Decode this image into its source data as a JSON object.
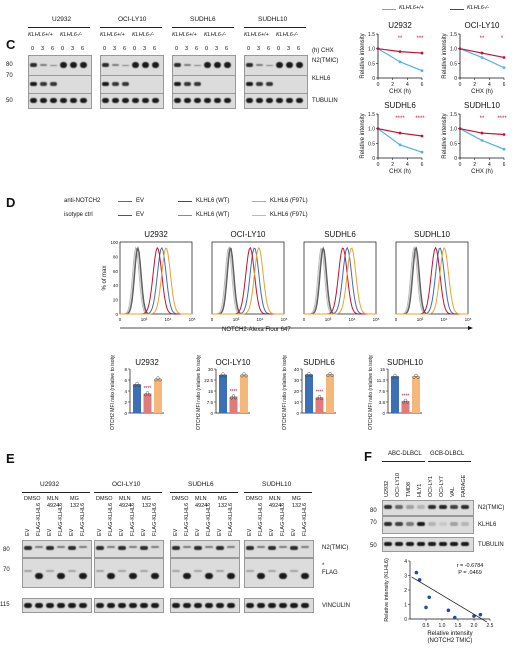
{
  "panel_c": {
    "letter": "C",
    "cells": [
      "U2932",
      "OCI-LY10",
      "SUDHL6",
      "SUDHL10"
    ],
    "genotype_wt": "KLHL6+/+",
    "genotype_ko": "KLHL6-/-",
    "times": [
      "0",
      "3",
      "6",
      "0",
      "3",
      "6"
    ],
    "chx_label": "(h) CHX",
    "markers": [
      "80",
      "70",
      "50"
    ],
    "bands": [
      "N2(TMIC)",
      "KLHL6",
      "TUBULIN"
    ],
    "charts": {
      "legend_wt": "KLHL6+/+",
      "legend_ko": "KLHL6-/-",
      "ylabel": "Relative intensity",
      "xlabel": "CHX (h)",
      "titles": [
        "U2932",
        "OCI-LY10",
        "SUDHL6",
        "SUDHL10"
      ],
      "sig": [
        "**",
        "***",
        "**",
        "*",
        "****",
        "****",
        "**",
        "****"
      ]
    }
  },
  "panel_d": {
    "letter": "D",
    "row_labels": [
      "anti-NOTCH2",
      "isotype ctrl"
    ],
    "legend_items": [
      "EV",
      "KLHL6 (WT)",
      "KLHL6 (F97L)",
      "EV",
      "KLHL6 (WT)",
      "KLHL6 (F97L)"
    ],
    "flow_titles": [
      "U2932",
      "OCI-LY10",
      "SUDHL6",
      "SUDHL10"
    ],
    "flow_ylabel": "% of max",
    "flow_xlabel": "NOTCH2-Alexa Flour 647",
    "flow_ticks": [
      "0",
      "10³",
      "10⁴",
      "10⁵"
    ],
    "flow_yticks": [
      "100",
      "80",
      "60",
      "40",
      "20",
      "0"
    ],
    "bar_titles": [
      "U2932",
      "OCI-LY10",
      "SUDHL6",
      "SUDHL10"
    ],
    "bar_ylabel": "NOTCH2 MFI ratio (relative to isotype)",
    "bar_sig": [
      "****",
      "****",
      "****",
      "****"
    ]
  },
  "panel_e": {
    "letter": "E",
    "cells": [
      "U2932",
      "OCI-LY10",
      "SUDHL6",
      "SUDHL10"
    ],
    "treat": [
      "DMSO",
      "MLN 4924",
      "MG 132"
    ],
    "lanes": [
      "EV",
      "FLAG-KLHL6",
      "EV",
      "FLAG-KLHL6",
      "EV",
      "FLAG-KLHL6"
    ],
    "markers": [
      "80",
      "70",
      "115"
    ],
    "bands": [
      "N2(TMIC)",
      "FLAG",
      "VINCULIN"
    ],
    "asterisk": "*"
  },
  "panel_f": {
    "letter": "F",
    "groups": [
      "ABC-DLBCL",
      "GCB-DLBCL"
    ],
    "lanes": [
      "U2932",
      "OCI-LY10",
      "TMD8",
      "HLY1",
      "OCI-LY1",
      "OCI-LY7",
      "VAL",
      "FARAGE"
    ],
    "markers": [
      "80",
      "70",
      "50"
    ],
    "bands": [
      "N2(TMIC)",
      "KLHL6",
      "TUBULIN"
    ],
    "scatter": {
      "r_text": "r = -0.6784",
      "p_text": "P = .0469",
      "xlabel": "Relative intensity (NOTCH2 TMIC)",
      "ylabel": "Relative intensity (KLHL6)",
      "xticks": [
        "0.5",
        "1.0",
        "1.5",
        "2.0",
        "2.5"
      ],
      "yticks": [
        "0",
        "1",
        "2",
        "3",
        "4"
      ]
    }
  },
  "chart_data": [
    {
      "type": "line",
      "title": "U2932",
      "x": [
        0,
        3,
        6
      ],
      "series": [
        {
          "name": "KLHL6+/+",
          "color": "#4fb3e8",
          "values": [
            1.0,
            0.55,
            0.25
          ]
        },
        {
          "name": "KLHL6-/-",
          "color": "#c8102e",
          "values": [
            1.0,
            0.9,
            0.85
          ]
        }
      ],
      "xlabel": "CHX (h)",
      "ylabel": "Relative intensity",
      "ylim": [
        0,
        1.5
      ]
    },
    {
      "type": "line",
      "title": "OCI-LY10",
      "x": [
        0,
        3,
        6
      ],
      "series": [
        {
          "name": "KLHL6+/+",
          "color": "#4fb3e8",
          "values": [
            1.0,
            0.7,
            0.35
          ]
        },
        {
          "name": "KLHL6-/-",
          "color": "#c8102e",
          "values": [
            1.0,
            0.85,
            0.7
          ]
        }
      ],
      "xlabel": "CHX (h)",
      "ylabel": "Relative intensity",
      "ylim": [
        0,
        1.5
      ]
    },
    {
      "type": "line",
      "title": "SUDHL6",
      "x": [
        0,
        3,
        6
      ],
      "series": [
        {
          "name": "KLHL6+/+",
          "color": "#4fb3e8",
          "values": [
            1.0,
            0.45,
            0.2
          ]
        },
        {
          "name": "KLHL6-/-",
          "color": "#c8102e",
          "values": [
            1.0,
            0.85,
            0.75
          ]
        }
      ],
      "xlabel": "CHX (h)",
      "ylabel": "Relative intensity",
      "ylim": [
        0,
        1.5
      ]
    },
    {
      "type": "line",
      "title": "SUDHL10",
      "x": [
        0,
        3,
        6
      ],
      "series": [
        {
          "name": "KLHL6+/+",
          "color": "#4fb3e8",
          "values": [
            1.0,
            0.6,
            0.3
          ]
        },
        {
          "name": "KLHL6-/-",
          "color": "#c8102e",
          "values": [
            1.0,
            0.85,
            0.8
          ]
        }
      ],
      "xlabel": "CHX (h)",
      "ylabel": "Relative intensity",
      "ylim": [
        0,
        1.5
      ]
    },
    {
      "type": "bar",
      "title": "U2932",
      "categories": [
        "EV",
        "KLHL6 (WT)",
        "KLHL6 (F97L)"
      ],
      "values": [
        5.2,
        3.5,
        6.2
      ],
      "colors": [
        "#3b6fb6",
        "#e07b7b",
        "#f5b87a"
      ],
      "ylim": [
        0,
        8
      ]
    },
    {
      "type": "bar",
      "title": "OCI-LY10",
      "categories": [
        "EV",
        "KLHL6 (WT)",
        "KLHL6 (F97L)"
      ],
      "values": [
        26,
        11,
        26
      ],
      "colors": [
        "#3b6fb6",
        "#e07b7b",
        "#f5b87a"
      ],
      "ylim": [
        0,
        30
      ]
    },
    {
      "type": "bar",
      "title": "SUDHL6",
      "categories": [
        "EV",
        "KLHL6 (WT)",
        "KLHL6 (F97L)"
      ],
      "values": [
        35,
        14,
        35
      ],
      "colors": [
        "#3b6fb6",
        "#e07b7b",
        "#f5b87a"
      ],
      "ylim": [
        0,
        40
      ]
    },
    {
      "type": "bar",
      "title": "SUDHL10",
      "categories": [
        "EV",
        "KLHL6 (WT)",
        "KLHL6 (F97L)"
      ],
      "values": [
        12.5,
        4,
        12.5
      ],
      "colors": [
        "#3b6fb6",
        "#e07b7b",
        "#f5b87a"
      ],
      "ylim": [
        0,
        15
      ]
    },
    {
      "type": "scatter",
      "title": "",
      "x": [
        0.2,
        0.3,
        0.6,
        0.5,
        1.2,
        1.4,
        2.0,
        2.2
      ],
      "y": [
        3.2,
        2.7,
        1.5,
        0.8,
        0.6,
        0.1,
        0.2,
        0.3
      ],
      "xlabel": "Relative intensity (NOTCH2 TMIC)",
      "ylabel": "Relative intensity (KLHL6)",
      "xlim": [
        0,
        2.5
      ],
      "ylim": [
        0,
        4
      ]
    }
  ]
}
